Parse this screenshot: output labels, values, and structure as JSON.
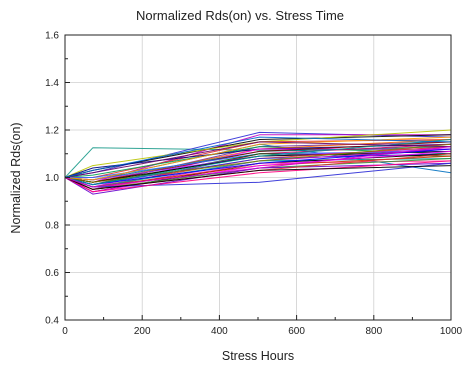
{
  "chart_data": {
    "type": "line",
    "title": "Normalized Rds(on) vs. Stress Time",
    "xlabel": "Stress Hours",
    "ylabel": "Normalized Rds(on)",
    "xlim": [
      0,
      1000
    ],
    "ylim": [
      0.4,
      1.6
    ],
    "x_ticks": [
      "0",
      "200",
      "400",
      "600",
      "800",
      "1000"
    ],
    "y_ticks": [
      "0.4",
      "0.6",
      "0.8",
      "1.0",
      "1.2",
      "1.4",
      "1.6"
    ],
    "grid": true,
    "legend": "none",
    "x": [
      0,
      72,
      504,
      1000
    ],
    "series": [
      {
        "color": "#1a9a8a",
        "values": [
          1.0,
          1.125,
          1.115,
          1.12
        ]
      },
      {
        "color": "#2b2bd6",
        "values": [
          1.0,
          1.02,
          1.19,
          1.17
        ]
      },
      {
        "color": "#c000c0",
        "values": [
          1.0,
          0.98,
          1.18,
          1.18
        ]
      },
      {
        "color": "#000000",
        "values": [
          1.0,
          1.03,
          1.16,
          1.18
        ]
      },
      {
        "color": "#b8c400",
        "values": [
          1.0,
          1.05,
          1.15,
          1.2
        ]
      },
      {
        "color": "#e03030",
        "values": [
          1.0,
          1.0,
          1.15,
          1.16
        ]
      },
      {
        "color": "#0070c0",
        "values": [
          1.0,
          0.99,
          1.14,
          1.02
        ]
      },
      {
        "color": "#7030a0",
        "values": [
          1.0,
          0.97,
          1.13,
          1.15
        ]
      },
      {
        "color": "#00a050",
        "values": [
          1.0,
          1.01,
          1.13,
          1.1
        ]
      },
      {
        "color": "#ff6600",
        "values": [
          1.0,
          0.98,
          1.12,
          1.16
        ]
      },
      {
        "color": "#000080",
        "values": [
          1.0,
          1.04,
          1.12,
          1.14
        ]
      },
      {
        "color": "#ff00ff",
        "values": [
          1.0,
          0.96,
          1.12,
          1.12
        ]
      },
      {
        "color": "#008080",
        "values": [
          1.0,
          0.99,
          1.11,
          1.13
        ]
      },
      {
        "color": "#800000",
        "values": [
          1.0,
          0.98,
          1.11,
          1.15
        ]
      },
      {
        "color": "#3366ff",
        "values": [
          1.0,
          1.0,
          1.1,
          1.11
        ]
      },
      {
        "color": "#cc0066",
        "values": [
          1.0,
          0.95,
          1.1,
          1.14
        ]
      },
      {
        "color": "#006600",
        "values": [
          1.0,
          0.97,
          1.1,
          1.09
        ]
      },
      {
        "color": "#9933ff",
        "values": [
          1.0,
          0.99,
          1.09,
          1.12
        ]
      },
      {
        "color": "#000000",
        "values": [
          1.0,
          0.98,
          1.09,
          1.11
        ]
      },
      {
        "color": "#e03030",
        "values": [
          1.0,
          0.96,
          1.08,
          1.13
        ]
      },
      {
        "color": "#2b2bd6",
        "values": [
          1.0,
          0.97,
          1.08,
          1.1
        ]
      },
      {
        "color": "#c000c0",
        "values": [
          1.0,
          0.95,
          1.07,
          1.12
        ]
      },
      {
        "color": "#00a0a0",
        "values": [
          1.0,
          0.96,
          1.07,
          1.08
        ]
      },
      {
        "color": "#808000",
        "values": [
          1.0,
          0.98,
          1.07,
          1.14
        ]
      },
      {
        "color": "#000000",
        "values": [
          1.0,
          0.94,
          1.06,
          1.1
        ]
      },
      {
        "color": "#ff3399",
        "values": [
          1.0,
          0.95,
          1.06,
          1.07
        ]
      },
      {
        "color": "#0000ff",
        "values": [
          1.0,
          0.97,
          1.06,
          1.12
        ]
      },
      {
        "color": "#cc3300",
        "values": [
          1.0,
          0.96,
          1.05,
          1.09
        ]
      },
      {
        "color": "#ff00ff",
        "values": [
          1.0,
          0.94,
          1.05,
          1.11
        ]
      },
      {
        "color": "#339933",
        "values": [
          1.0,
          0.95,
          1.04,
          1.08
        ]
      },
      {
        "color": "#6600cc",
        "values": [
          1.0,
          0.93,
          1.04,
          1.06
        ]
      },
      {
        "color": "#e03030",
        "values": [
          1.0,
          0.95,
          1.03,
          1.1
        ]
      },
      {
        "color": "#2b2bd6",
        "values": [
          1.0,
          0.96,
          0.98,
          1.06
        ]
      },
      {
        "color": "#ff0080",
        "values": [
          1.0,
          0.94,
          1.02,
          1.07
        ]
      },
      {
        "color": "#000000",
        "values": [
          1.0,
          0.95,
          1.03,
          1.05
        ]
      },
      {
        "color": "#009999",
        "values": [
          1.0,
          0.97,
          1.09,
          1.16
        ]
      },
      {
        "color": "#ff9900",
        "values": [
          1.0,
          0.99,
          1.14,
          1.17
        ]
      },
      {
        "color": "#660066",
        "values": [
          1.0,
          1.02,
          1.15,
          1.13
        ]
      },
      {
        "color": "#0066cc",
        "values": [
          1.0,
          1.03,
          1.17,
          1.15
        ]
      },
      {
        "color": "#cc00cc",
        "values": [
          1.0,
          0.96,
          1.04,
          1.13
        ]
      }
    ]
  }
}
